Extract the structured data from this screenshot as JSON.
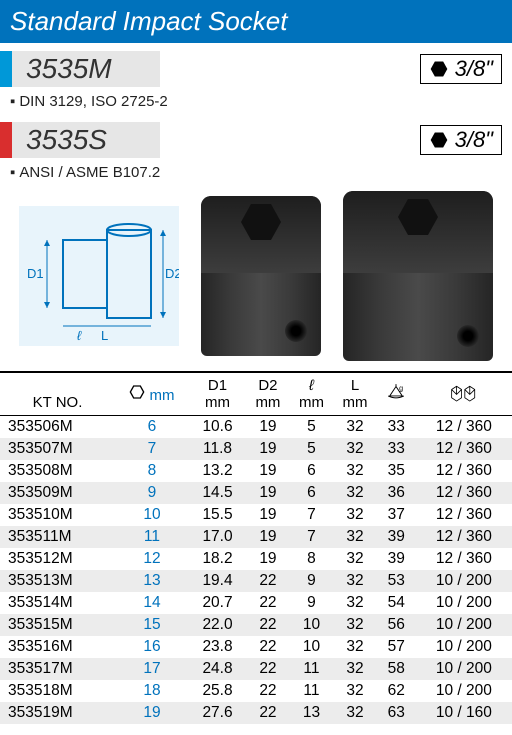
{
  "title": "Standard Impact Socket",
  "variants": [
    {
      "code": "3535M",
      "color": "#0098d8",
      "drive": "3/8\"",
      "note": "DIN 3129, ISO 2725-2"
    },
    {
      "code": "3535S",
      "color": "#d92e2e",
      "drive": "3/8\"",
      "note": "ANSI / ASME B107.2"
    }
  ],
  "diagram": {
    "labels": [
      "D1",
      "D2",
      "ℓ",
      "L"
    ],
    "bg": "#e8f4fb"
  },
  "table": {
    "headers": {
      "ktno": "KT NO.",
      "size_unit": "mm",
      "d1": "D1",
      "d1_unit": "mm",
      "d2": "D2",
      "d2_unit": "mm",
      "l1": "ℓ",
      "l1_unit": "mm",
      "l2": "L",
      "l2_unit": "mm"
    },
    "rows": [
      {
        "kt": "353506M",
        "mm": "6",
        "d1": "10.6",
        "d2": "19",
        "l1": "5",
        "l2": "32",
        "g": "33",
        "pk": "12 / 360"
      },
      {
        "kt": "353507M",
        "mm": "7",
        "d1": "11.8",
        "d2": "19",
        "l1": "5",
        "l2": "32",
        "g": "33",
        "pk": "12 / 360"
      },
      {
        "kt": "353508M",
        "mm": "8",
        "d1": "13.2",
        "d2": "19",
        "l1": "6",
        "l2": "32",
        "g": "35",
        "pk": "12 / 360"
      },
      {
        "kt": "353509M",
        "mm": "9",
        "d1": "14.5",
        "d2": "19",
        "l1": "6",
        "l2": "32",
        "g": "36",
        "pk": "12 / 360"
      },
      {
        "kt": "353510M",
        "mm": "10",
        "d1": "15.5",
        "d2": "19",
        "l1": "7",
        "l2": "32",
        "g": "37",
        "pk": "12 / 360"
      },
      {
        "kt": "353511M",
        "mm": "11",
        "d1": "17.0",
        "d2": "19",
        "l1": "7",
        "l2": "32",
        "g": "39",
        "pk": "12 / 360"
      },
      {
        "kt": "353512M",
        "mm": "12",
        "d1": "18.2",
        "d2": "19",
        "l1": "8",
        "l2": "32",
        "g": "39",
        "pk": "12 / 360"
      },
      {
        "kt": "353513M",
        "mm": "13",
        "d1": "19.4",
        "d2": "22",
        "l1": "9",
        "l2": "32",
        "g": "53",
        "pk": "10 / 200"
      },
      {
        "kt": "353514M",
        "mm": "14",
        "d1": "20.7",
        "d2": "22",
        "l1": "9",
        "l2": "32",
        "g": "54",
        "pk": "10 / 200"
      },
      {
        "kt": "353515M",
        "mm": "15",
        "d1": "22.0",
        "d2": "22",
        "l1": "10",
        "l2": "32",
        "g": "56",
        "pk": "10 / 200"
      },
      {
        "kt": "353516M",
        "mm": "16",
        "d1": "23.8",
        "d2": "22",
        "l1": "10",
        "l2": "32",
        "g": "57",
        "pk": "10 / 200"
      },
      {
        "kt": "353517M",
        "mm": "17",
        "d1": "24.8",
        "d2": "22",
        "l1": "11",
        "l2": "32",
        "g": "58",
        "pk": "10 / 200"
      },
      {
        "kt": "353518M",
        "mm": "18",
        "d1": "25.8",
        "d2": "22",
        "l1": "11",
        "l2": "32",
        "g": "62",
        "pk": "10 / 200"
      },
      {
        "kt": "353519M",
        "mm": "19",
        "d1": "27.6",
        "d2": "22",
        "l1": "13",
        "l2": "32",
        "g": "63",
        "pk": "10 / 160"
      }
    ],
    "row_bg_even": "#ececec"
  }
}
